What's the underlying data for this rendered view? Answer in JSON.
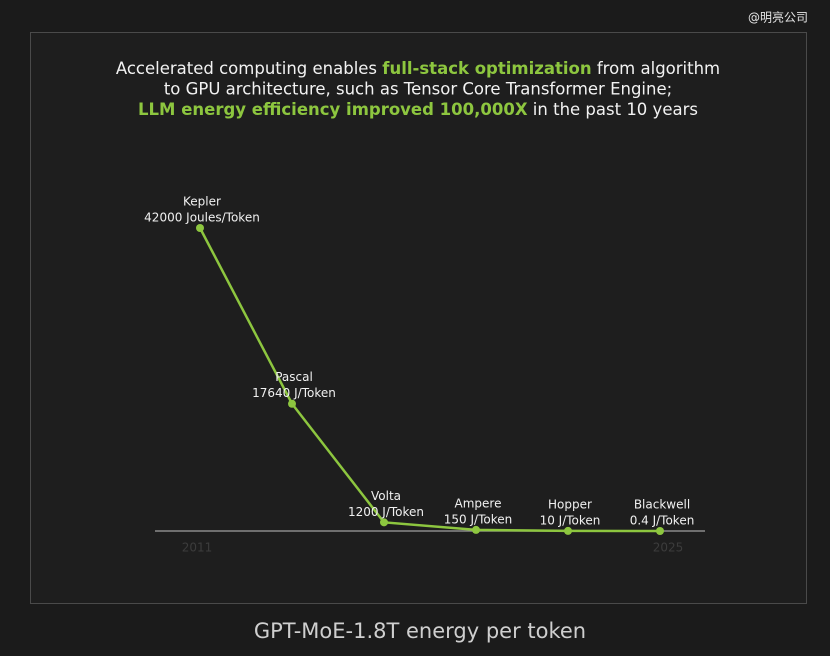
{
  "watermark": "@明亮公司",
  "chart_data": {
    "type": "line",
    "title_lines": [
      [
        {
          "text": "Accelerated computing enables ",
          "color": "#f2f2f2"
        },
        {
          "text": "full-stack optimization",
          "color": "#8dc63f"
        },
        {
          "text": " from algorithm",
          "color": "#f2f2f2"
        }
      ],
      [
        {
          "text": "to GPU architecture, such as Tensor Core Transformer Engine;",
          "color": "#f2f2f2"
        }
      ],
      [
        {
          "text": "LLM energy efficiency improved 100,000X",
          "color": "#8dc63f"
        },
        {
          "text": " in the past 10 years",
          "color": "#f2f2f2"
        }
      ]
    ],
    "categories": [
      "Kepler",
      "Pascal",
      "Volta",
      "Ampere",
      "Hopper",
      "Blackwell"
    ],
    "series": [
      {
        "color": "#8dc63f",
        "values": [
          42000,
          17640,
          1200,
          150,
          10,
          0.4
        ],
        "value_labels": [
          "42000 Joules/Token",
          "17640 J/Token",
          "1200 J/Token",
          "150 J/Token",
          "10 J/Token",
          "0.4 J/Token"
        ]
      }
    ],
    "axis_years": [
      "2011",
      "2025"
    ],
    "ylim": [
      0,
      42000
    ],
    "caption": "GPT-MoE-1.8T energy per token"
  }
}
